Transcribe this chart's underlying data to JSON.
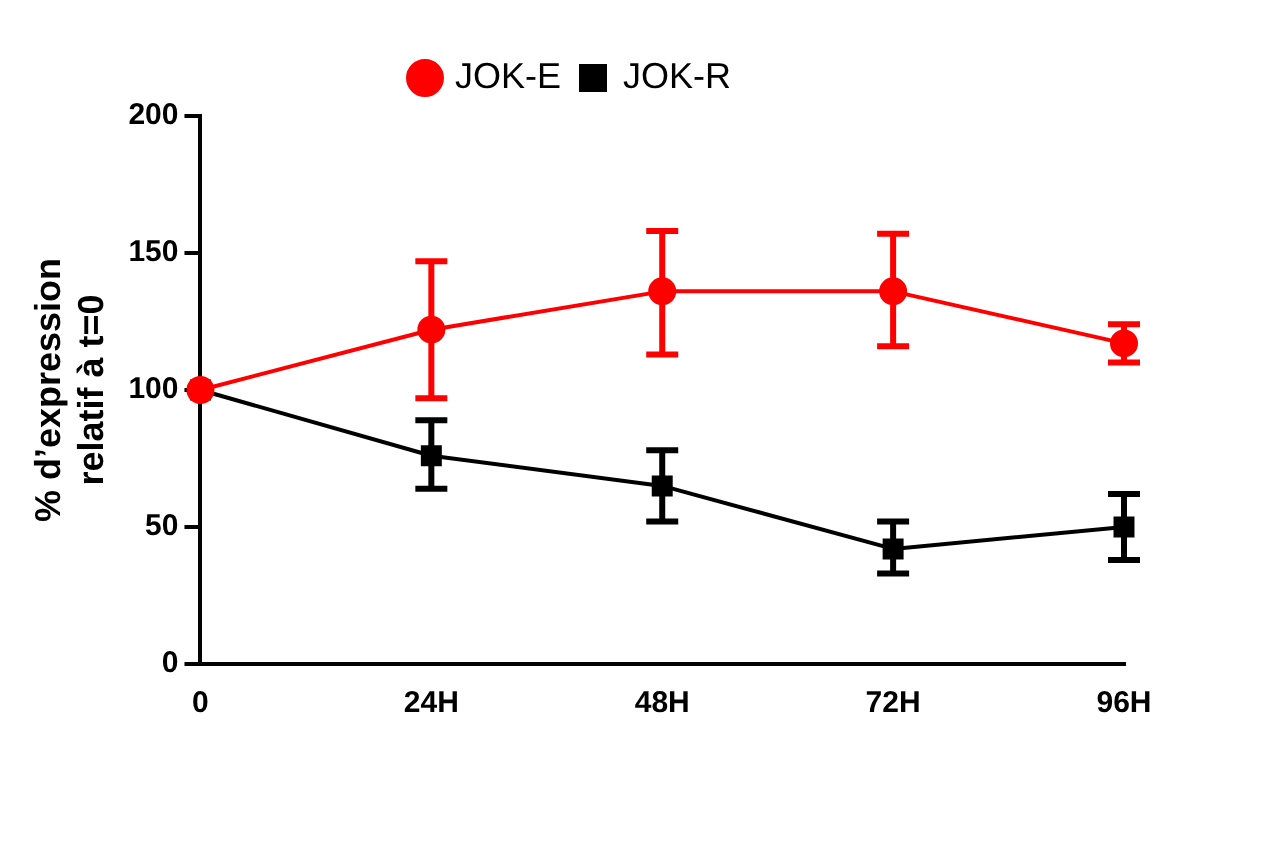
{
  "chart_data": {
    "type": "line",
    "ylabel": "% d’expression\nrelatif à t=0",
    "categories": [
      "0",
      "24H",
      "48H",
      "72H",
      "96H"
    ],
    "series": [
      {
        "name": "JOK-E",
        "color": "#ff0000",
        "marker": "circle",
        "values": [
          100,
          122,
          136,
          136,
          117
        ],
        "errors": [
          null,
          [
            97,
            147
          ],
          [
            113,
            158
          ],
          [
            116,
            157
          ],
          [
            110,
            124
          ]
        ]
      },
      {
        "name": "JOK-R",
        "color": "#000000",
        "marker": "square",
        "values": [
          100,
          76,
          65,
          42,
          50
        ],
        "errors": [
          null,
          [
            64,
            89
          ],
          [
            52,
            78
          ],
          [
            33,
            52
          ],
          [
            38,
            62
          ]
        ]
      }
    ],
    "ylim": [
      0,
      200
    ],
    "yticks": [
      0,
      50,
      100,
      150,
      200
    ],
    "grid": false,
    "legend": "top"
  }
}
